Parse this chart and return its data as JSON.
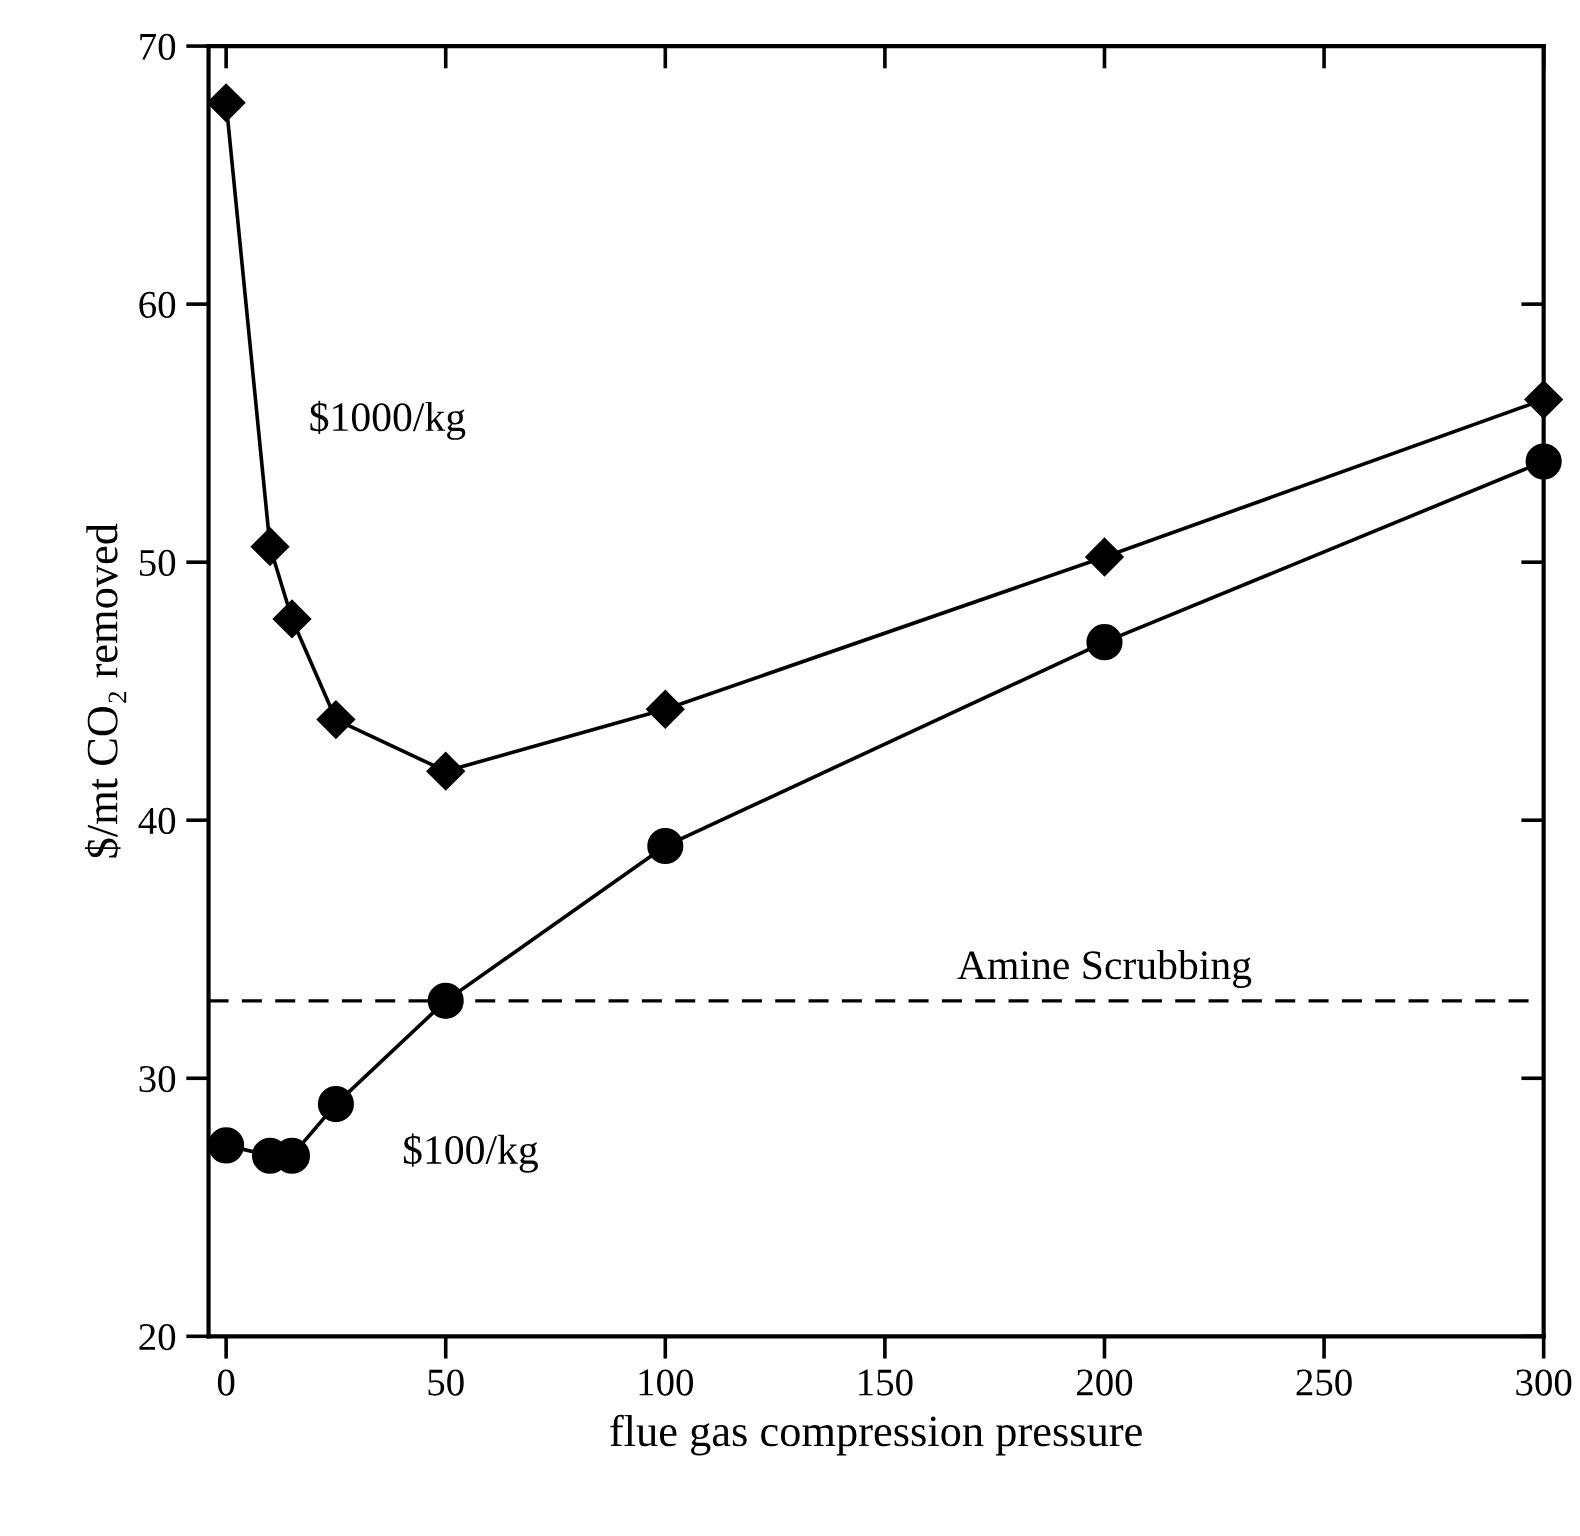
{
  "chart_data": {
    "type": "line",
    "xlabel": "flue gas compression pressure",
    "ylabel": "$/mt CO₂ removed",
    "series": [
      {
        "x": [
          0,
          10,
          15,
          25,
          50,
          100,
          200,
          300
        ],
        "values": [
          67.8,
          50.6,
          47.8,
          43.9,
          41.9,
          44.3,
          50.2,
          56.3
        ],
        "color": "#000000",
        "marker": "diamond"
      },
      {
        "x": [
          0,
          10,
          15,
          25,
          50,
          100,
          200,
          300
        ],
        "values": [
          27.4,
          27.0,
          27.0,
          29.0,
          33.0,
          39.0,
          46.9,
          53.9
        ],
        "color": "#000000",
        "marker": "circle"
      }
    ],
    "annotations": [
      "$1000/kg",
      "$100/kg"
    ],
    "ref_lines": [
      {
        "axis": "y",
        "value": 33,
        "label": "Amine Scrubbing",
        "line_style": "dashed",
        "color": "#000000"
      }
    ],
    "xlim": [
      -4,
      300
    ],
    "ylim": [
      20,
      70
    ],
    "xticks": [
      0,
      50,
      100,
      150,
      200,
      250,
      300
    ],
    "yticks": [
      20,
      30,
      40,
      50,
      60,
      70
    ],
    "grid": false,
    "legend": false,
    "line_style": "solid"
  }
}
